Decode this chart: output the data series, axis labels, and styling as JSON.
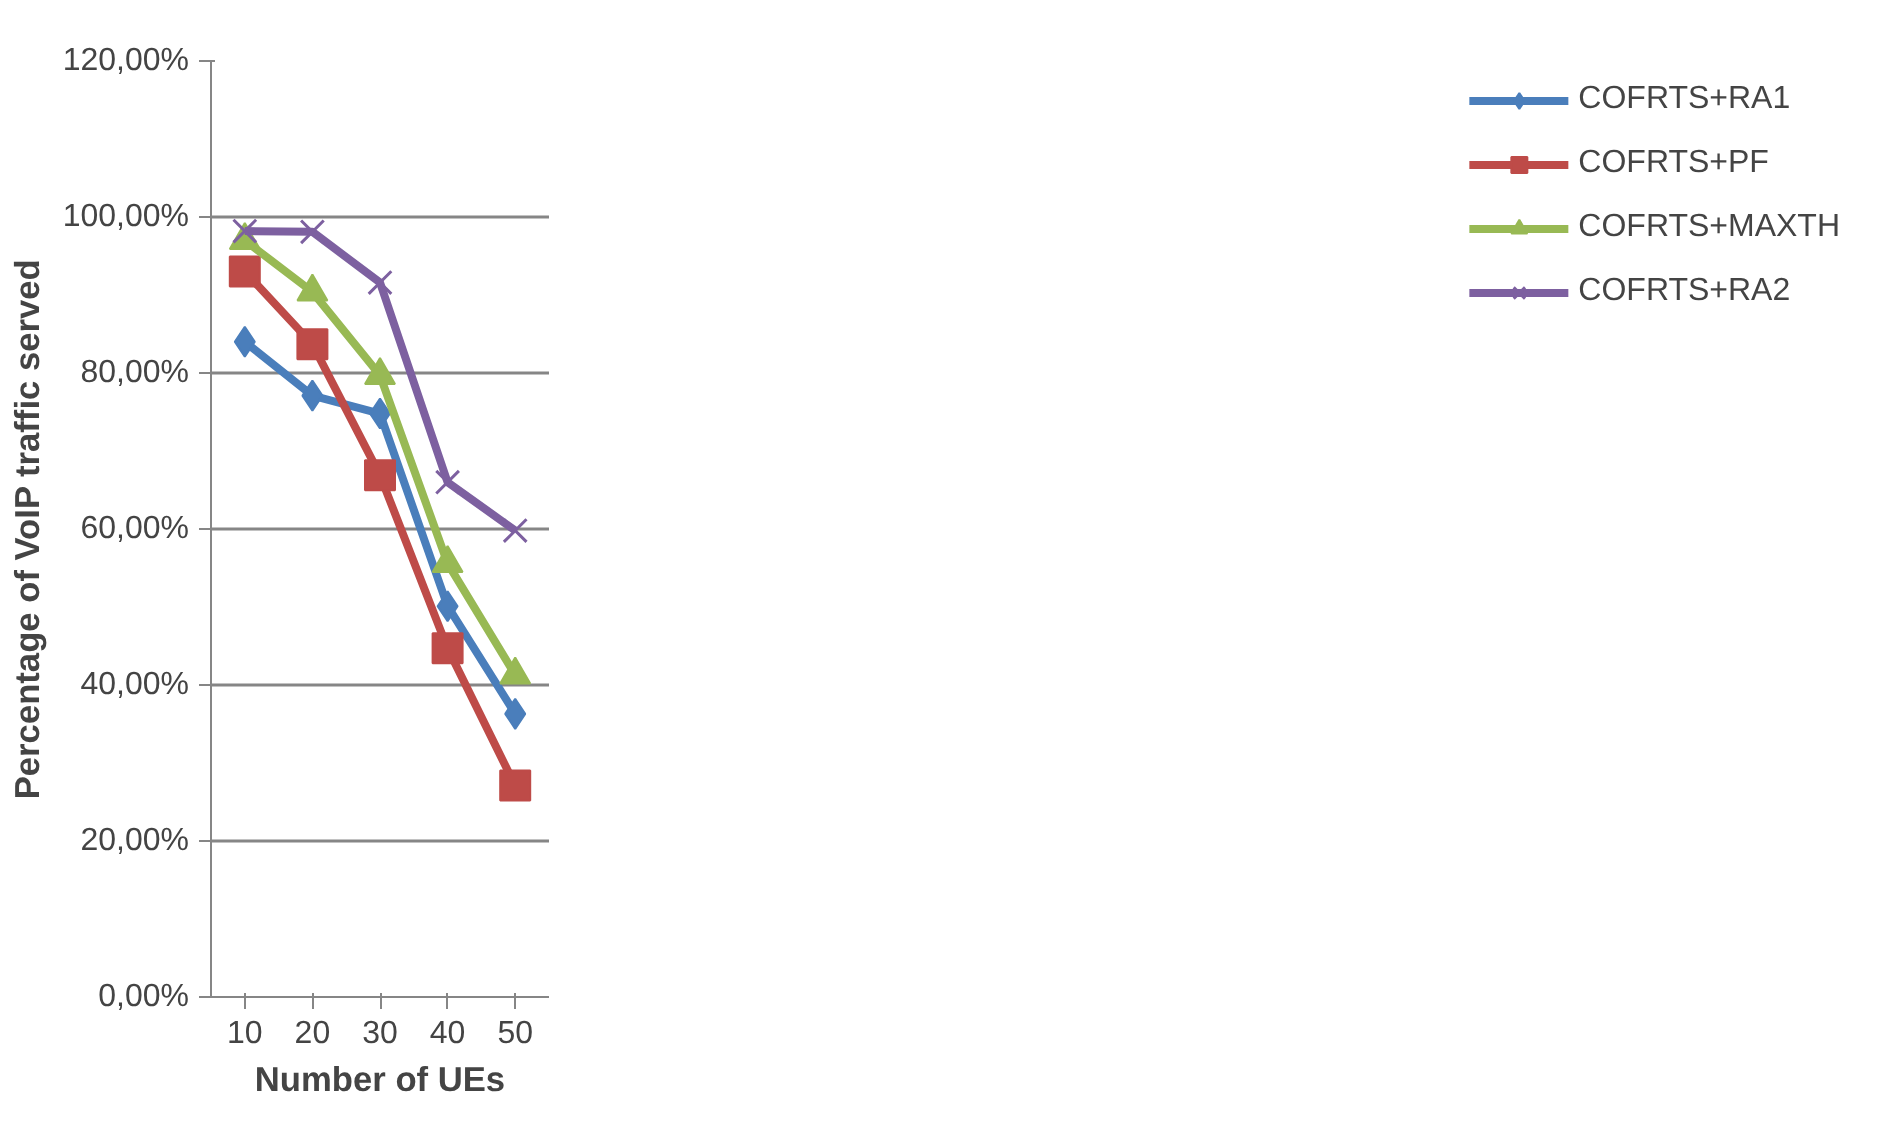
{
  "chart_data": {
    "type": "line",
    "xlabel": "Number of UEs",
    "ylabel": "Percentage of VoIP traffic served",
    "categories": [
      "10",
      "20",
      "30",
      "40",
      "50"
    ],
    "ylim": [
      0,
      120
    ],
    "yticks": [
      {
        "value": 0,
        "label": "0,00%"
      },
      {
        "value": 20,
        "label": "20,00%"
      },
      {
        "value": 40,
        "label": "40,00%"
      },
      {
        "value": 60,
        "label": "60,00%"
      },
      {
        "value": 80,
        "label": "80,00%"
      },
      {
        "value": 100,
        "label": "100,00%"
      },
      {
        "value": 120,
        "label": "120,00%"
      }
    ],
    "grid": "y",
    "legend": "right",
    "series": [
      {
        "name": "COFRTS+RA1",
        "color": "#4a7ebb",
        "marker": "diamond",
        "values": [
          84.0,
          77.1,
          74.8,
          50.1,
          36.3
        ]
      },
      {
        "name": "COFRTS+PF",
        "color": "#be4b48",
        "marker": "square",
        "values": [
          93.0,
          83.7,
          66.9,
          44.7,
          27.1
        ]
      },
      {
        "name": "COFRTS+MAXTH",
        "color": "#98b954",
        "marker": "triangle",
        "values": [
          97.0,
          90.4,
          79.7,
          55.6,
          41.3
        ]
      },
      {
        "name": "COFRTS+RA2",
        "color": "#7d60a0",
        "marker": "cross",
        "values": [
          98.2,
          98.1,
          91.6,
          66.0,
          59.8
        ]
      }
    ]
  }
}
